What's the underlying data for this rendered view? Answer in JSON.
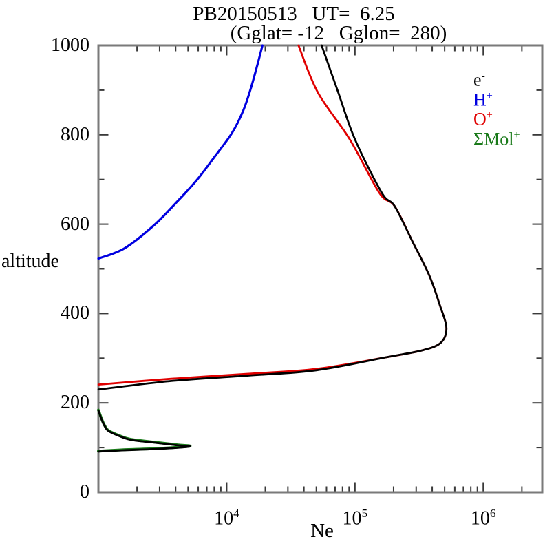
{
  "chart_data": {
    "type": "line",
    "title": "PB20150513   UT=  6.25",
    "subtitle": "(Gglat= -12   Gglon=  280)",
    "xlabel": "Ne",
    "ylabel": "altitude",
    "x_axis": {
      "scale": "log10",
      "min": 1000,
      "max": 2900000,
      "min_log": 3,
      "max_log": 6.46,
      "major_tick_labels": [
        {
          "base": "10",
          "sup": "4",
          "log": 4
        },
        {
          "base": "10",
          "sup": "5",
          "log": 5
        },
        {
          "base": "10",
          "sup": "6",
          "log": 6
        }
      ]
    },
    "y_axis": {
      "min": 0,
      "max": 1000,
      "major_step": 200,
      "minor_step": 100,
      "labels": [
        {
          "value": 0,
          "text": "0"
        },
        {
          "value": 200,
          "text": "200"
        },
        {
          "value": 400,
          "text": "400"
        },
        {
          "value": 600,
          "text": "600"
        },
        {
          "value": 800,
          "text": "800"
        },
        {
          "value": 1000,
          "text": "1000"
        }
      ]
    },
    "legend": {
      "position": "top-right",
      "entries": [
        {
          "name": "e-",
          "base": "e",
          "sup": "-",
          "color": "#000000"
        },
        {
          "name": "H+",
          "base": "H",
          "sup": "+",
          "color": "#0000e0"
        },
        {
          "name": "O+",
          "base": "O",
          "sup": "+",
          "color": "#e00000"
        },
        {
          "name": "SMol+",
          "base": "ΣMol",
          "sup": "+",
          "color": "#1a7a1a"
        }
      ]
    },
    "series": [
      {
        "name": "SMol+",
        "color": "#1a7a1a",
        "width": 4,
        "segments": [
          [
            [
              1000,
              184
            ],
            [
              1070,
              161
            ],
            [
              1120,
              149
            ],
            [
              1200,
              138
            ],
            [
              1480,
              126
            ],
            [
              1820,
              118
            ],
            [
              2950,
              111
            ],
            [
              4170,
              106
            ],
            [
              5130,
              103
            ],
            [
              2950,
              98
            ],
            [
              1580,
              95
            ],
            [
              1000,
              92
            ]
          ]
        ]
      },
      {
        "name": "H+",
        "color": "#0000e0",
        "width": 3.2,
        "segments": [
          [
            [
              19000,
              1000
            ],
            [
              17400,
              958
            ],
            [
              15500,
              906
            ],
            [
              13500,
              855
            ],
            [
              11000,
              804
            ],
            [
              8100,
              752
            ],
            [
              5900,
              700
            ],
            [
              4100,
              650
            ],
            [
              2700,
              597
            ],
            [
              1600,
              546
            ],
            [
              1000,
              523
            ]
          ]
        ]
      },
      {
        "name": "O+",
        "color": "#e00000",
        "width": 2.8,
        "segments": [
          [
            [
              36300,
              1000
            ],
            [
              51300,
              895
            ],
            [
              91000,
              790
            ],
            [
              155000,
              670
            ],
            [
              204000,
              640
            ],
            [
              282000,
              560
            ],
            [
              380000,
              485
            ],
            [
              457000,
              420
            ],
            [
              516000,
              368
            ],
            [
              468000,
              335
            ],
            [
              339000,
              318
            ],
            [
              174000,
              302
            ],
            [
              50000,
              276
            ],
            [
              14500,
              265
            ],
            [
              3700,
              254
            ],
            [
              1000,
              241
            ]
          ]
        ]
      },
      {
        "name": "e-",
        "color": "#000000",
        "width": 2.8,
        "segments": [
          [
            [
              55000,
              1000
            ],
            [
              74000,
              895
            ],
            [
              100000,
              790
            ],
            [
              162000,
              670
            ],
            [
              204000,
              640
            ],
            [
              282000,
              560
            ],
            [
              380000,
              485
            ],
            [
              457000,
              420
            ],
            [
              516000,
              368
            ],
            [
              468000,
              335
            ],
            [
              339000,
              318
            ],
            [
              174000,
              302
            ],
            [
              50000,
              273
            ],
            [
              14500,
              261
            ],
            [
              3700,
              249
            ],
            [
              1000,
              230
            ]
          ],
          [
            [
              1000,
              183
            ],
            [
              1070,
              160
            ],
            [
              1120,
              148
            ],
            [
              1200,
              137
            ],
            [
              1480,
              125
            ],
            [
              1820,
              117
            ],
            [
              2950,
              110
            ],
            [
              4170,
              105
            ],
            [
              5130,
              102
            ],
            [
              2950,
              97
            ],
            [
              1580,
              94
            ],
            [
              1000,
              91
            ]
          ]
        ]
      }
    ],
    "frame_color": "#7a7a7a",
    "tick_color": "#3a3a3a"
  }
}
